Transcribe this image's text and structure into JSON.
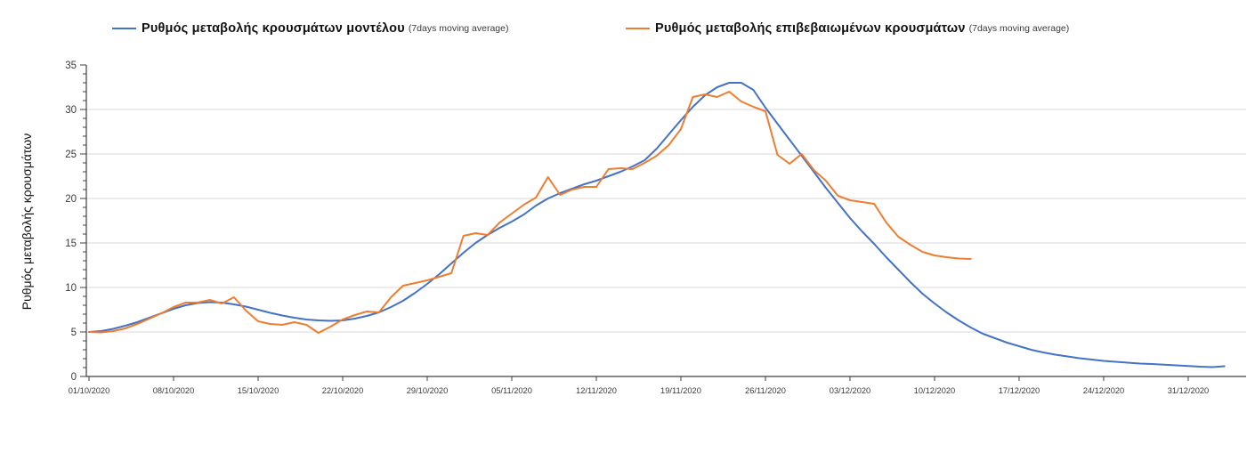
{
  "legend": {
    "items": [
      {
        "label": "Ρυθμός μεταβολής κρουσμάτων μοντέλου",
        "sublabel": "(7days moving average)",
        "color": "#4472C4"
      },
      {
        "label": "Ρυθμός μεταβολής επιβεβαιωμένων κρουσμάτων",
        "sublabel": "(7days moving average)",
        "color": "#ED7D31"
      }
    ]
  },
  "chart_data": {
    "type": "line",
    "title": "",
    "xlabel": "",
    "ylabel": "Ρυθμός μεταβολής κρουσμάτων",
    "ylim": [
      0,
      35
    ],
    "y_ticks": [
      0,
      5,
      10,
      15,
      20,
      25,
      30,
      35
    ],
    "y_minor_tick_step": 1,
    "grid": "horizontal-major",
    "legend_position": "top",
    "x_start_date": "01/10/2020",
    "x_tick_interval_days": 7,
    "x_tick_labels": [
      "01/10/2020",
      "08/10/2020",
      "15/10/2020",
      "22/10/2020",
      "29/10/2020",
      "05/11/2020",
      "12/11/2020",
      "19/11/2020",
      "26/11/2020",
      "03/12/2020",
      "10/12/2020",
      "17/12/2020",
      "24/12/2020",
      "31/12/2020"
    ],
    "series": [
      {
        "name": "Ρυθμός μεταβολής κρουσμάτων μοντέλου",
        "sublabel": "(7days moving average)",
        "color": "#4472C4",
        "start_day_index": 0,
        "values": [
          5.0,
          5.1,
          5.35,
          5.7,
          6.1,
          6.6,
          7.1,
          7.6,
          8.0,
          8.25,
          8.35,
          8.3,
          8.1,
          7.85,
          7.5,
          7.15,
          6.85,
          6.6,
          6.4,
          6.3,
          6.25,
          6.3,
          6.5,
          6.8,
          7.2,
          7.8,
          8.5,
          9.4,
          10.4,
          11.5,
          12.7,
          13.9,
          15.0,
          15.9,
          16.7,
          17.4,
          18.2,
          19.2,
          20.0,
          20.6,
          21.1,
          21.6,
          22.0,
          22.5,
          23.0,
          23.6,
          24.3,
          25.6,
          27.2,
          28.8,
          30.3,
          31.6,
          32.5,
          33.0,
          33.0,
          32.2,
          30.2,
          28.4,
          26.6,
          24.8,
          23.0,
          21.2,
          19.5,
          17.8,
          16.3,
          14.9,
          13.4,
          12.0,
          10.6,
          9.3,
          8.2,
          7.2,
          6.3,
          5.5,
          4.8,
          4.3,
          3.8,
          3.4,
          3.0,
          2.7,
          2.45,
          2.25,
          2.05,
          1.9,
          1.75,
          1.65,
          1.55,
          1.45,
          1.4,
          1.32,
          1.25,
          1.18,
          1.1,
          1.05,
          1.15
        ]
      },
      {
        "name": "Ρυθμός μεταβολής επιβεβαιωμένων κρουσμάτων",
        "sublabel": "(7days moving average)",
        "color": "#ED7D31",
        "start_day_index": 0,
        "values": [
          5.0,
          4.95,
          5.1,
          5.4,
          5.9,
          6.5,
          7.1,
          7.8,
          8.3,
          8.3,
          8.6,
          8.2,
          8.9,
          7.4,
          6.2,
          5.9,
          5.8,
          6.1,
          5.8,
          4.9,
          5.6,
          6.4,
          6.9,
          7.3,
          7.2,
          8.9,
          10.2,
          10.5,
          10.8,
          11.2,
          11.6,
          15.8,
          16.1,
          15.9,
          17.3,
          18.3,
          19.3,
          20.1,
          22.4,
          20.4,
          21.0,
          21.3,
          21.3,
          23.3,
          23.4,
          23.3,
          24.0,
          24.8,
          26.0,
          27.8,
          31.4,
          31.7,
          31.4,
          32.0,
          30.9,
          30.3,
          29.8,
          24.9,
          23.9,
          25.0,
          23.2,
          22.0,
          20.3,
          19.8,
          19.6,
          19.4,
          17.3,
          15.7,
          14.8,
          14.0,
          13.6,
          13.4,
          13.25,
          13.2
        ]
      }
    ],
    "colors": {
      "gridline": "#D9D9D9",
      "axis": "#404040",
      "tick_label": "#3a3a3a"
    }
  }
}
